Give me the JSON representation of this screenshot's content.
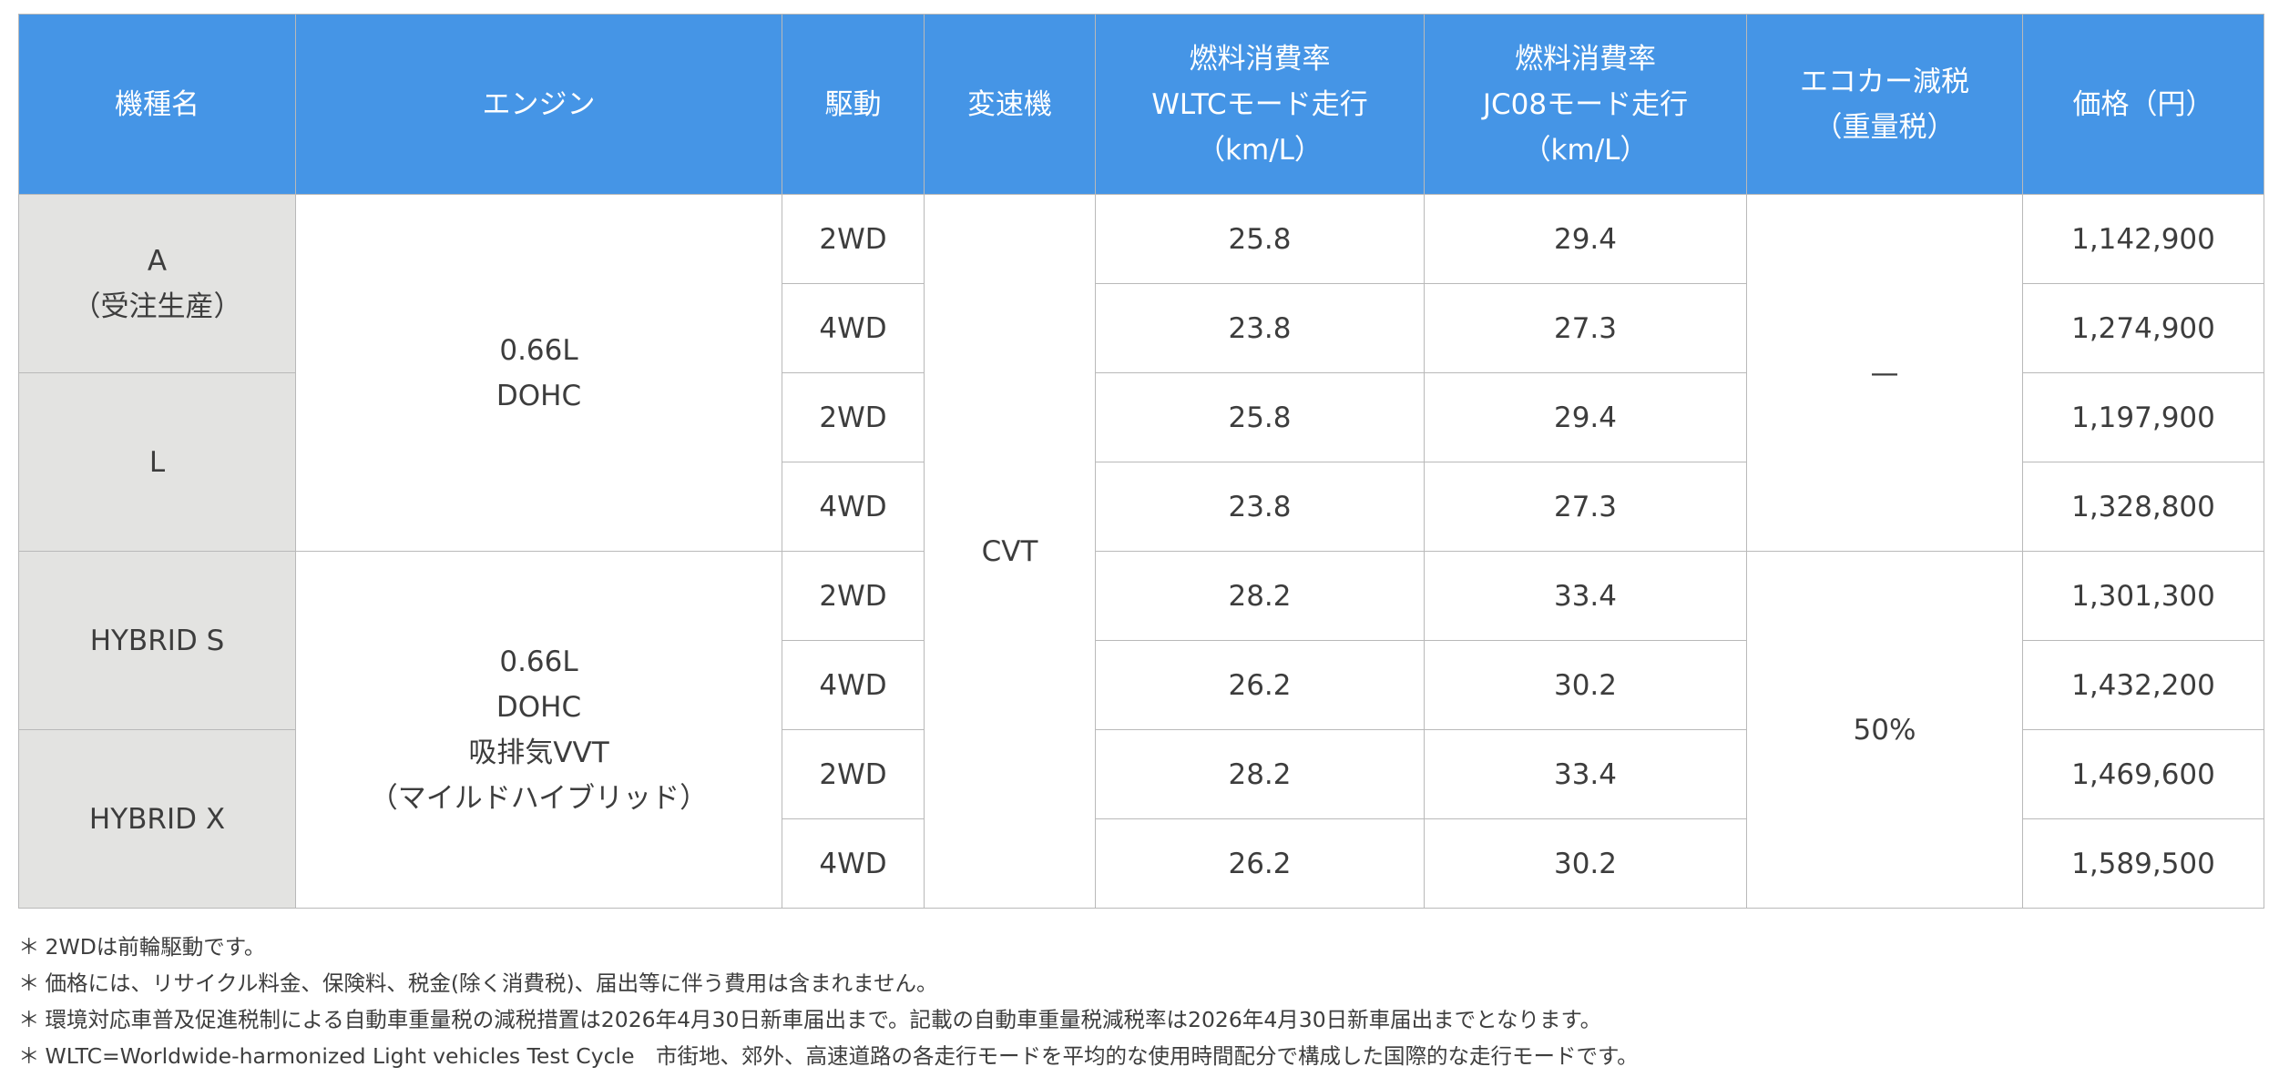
{
  "header": {
    "model": "機種名",
    "engine": "エンジン",
    "drive": "駆動",
    "transmission": "変速機",
    "wltc": [
      "燃料消費率",
      "WLTCモード走行",
      "（km/L）"
    ],
    "jc08": [
      "燃料消費率",
      "JC08モード走行",
      "（km/L）"
    ],
    "eco_tax": [
      "エコカー減税",
      "（重量税）"
    ],
    "price": "価格（円）"
  },
  "models": {
    "a": [
      "A",
      "（受注生産）"
    ],
    "l": "L",
    "hybrid_s": "HYBRID S",
    "hybrid_x": "HYBRID X"
  },
  "engines": {
    "standard": [
      "0.66L",
      "DOHC"
    ],
    "hybrid": [
      "0.66L",
      "DOHC",
      "吸排気VVT",
      "（マイルドハイブリッド）"
    ]
  },
  "transmission_value": "CVT",
  "eco_tax": {
    "standard": "—",
    "hybrid": "50%"
  },
  "rows": [
    {
      "drive": "2WD",
      "wltc": "25.8",
      "jc08": "29.4",
      "price": "1,142,900"
    },
    {
      "drive": "4WD",
      "wltc": "23.8",
      "jc08": "27.3",
      "price": "1,274,900"
    },
    {
      "drive": "2WD",
      "wltc": "25.8",
      "jc08": "29.4",
      "price": "1,197,900"
    },
    {
      "drive": "4WD",
      "wltc": "23.8",
      "jc08": "27.3",
      "price": "1,328,800"
    },
    {
      "drive": "2WD",
      "wltc": "28.2",
      "jc08": "33.4",
      "price": "1,301,300"
    },
    {
      "drive": "4WD",
      "wltc": "26.2",
      "jc08": "30.2",
      "price": "1,432,200"
    },
    {
      "drive": "2WD",
      "wltc": "28.2",
      "jc08": "33.4",
      "price": "1,469,600"
    },
    {
      "drive": "4WD",
      "wltc": "26.2",
      "jc08": "30.2",
      "price": "1,589,500"
    }
  ],
  "note_mark": "＊",
  "notes": [
    "2WDは前輪駆動です。",
    "価格には、リサイクル料金、保険料、税金(除く消費税)、届出等に伴う費用は含まれません。",
    "環境対応車普及促進税制による自動車重量税の減税措置は2026年4月30日新車届出まで。記載の自動車重量税減税率は2026年4月30日新車届出までとなります。",
    "WLTC=Worldwide-harmonized Light vehicles Test Cycle　市街地、郊外、高速道路の各走行モードを平均的な使用時間配分で構成した国際的な走行モードです。"
  ],
  "colors": {
    "header_bg": "#4595e6",
    "model_cell_bg": "#e3e3e1",
    "border": "#b9b9b9"
  }
}
